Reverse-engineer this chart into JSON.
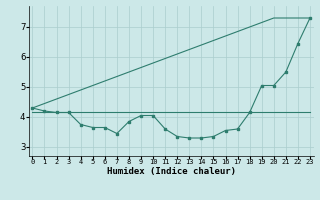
{
  "x": [
    0,
    1,
    2,
    3,
    4,
    5,
    6,
    7,
    8,
    9,
    10,
    11,
    12,
    13,
    14,
    15,
    16,
    17,
    18,
    19,
    20,
    21,
    22,
    23
  ],
  "line1_curved": [
    4.3,
    4.2,
    4.15,
    4.15,
    3.75,
    3.65,
    3.65,
    3.45,
    3.85,
    4.05,
    4.05,
    3.6,
    3.35,
    3.3,
    3.3,
    3.35,
    3.55,
    3.6,
    4.15,
    5.05,
    5.05,
    5.5,
    6.45,
    7.3
  ],
  "line2_diagonal": [
    4.3,
    4.45,
    4.6,
    4.75,
    4.9,
    5.05,
    5.2,
    5.35,
    5.5,
    5.65,
    5.8,
    5.95,
    6.1,
    6.25,
    6.4,
    6.55,
    6.7,
    6.85,
    7.0,
    7.15,
    7.3,
    7.3,
    7.3,
    7.3
  ],
  "line3_flat": [
    4.15,
    4.15,
    4.15,
    4.15,
    4.15,
    4.15,
    4.15,
    4.15,
    4.15,
    4.15,
    4.15,
    4.15,
    4.15,
    4.15,
    4.15,
    4.15,
    4.15,
    4.15,
    4.15,
    4.15,
    4.15,
    4.15,
    4.15,
    4.15
  ],
  "line_color": "#2e7d6e",
  "bg_color": "#cce8e8",
  "grid_color": "#aacece",
  "xlabel": "Humidex (Indice chaleur)",
  "yticks": [
    3,
    4,
    5,
    6,
    7
  ],
  "xticks": [
    0,
    1,
    2,
    3,
    4,
    5,
    6,
    7,
    8,
    9,
    10,
    11,
    12,
    13,
    14,
    15,
    16,
    17,
    18,
    19,
    20,
    21,
    22,
    23
  ],
  "ylim": [
    2.7,
    7.7
  ],
  "xlim": [
    -0.3,
    23.3
  ]
}
